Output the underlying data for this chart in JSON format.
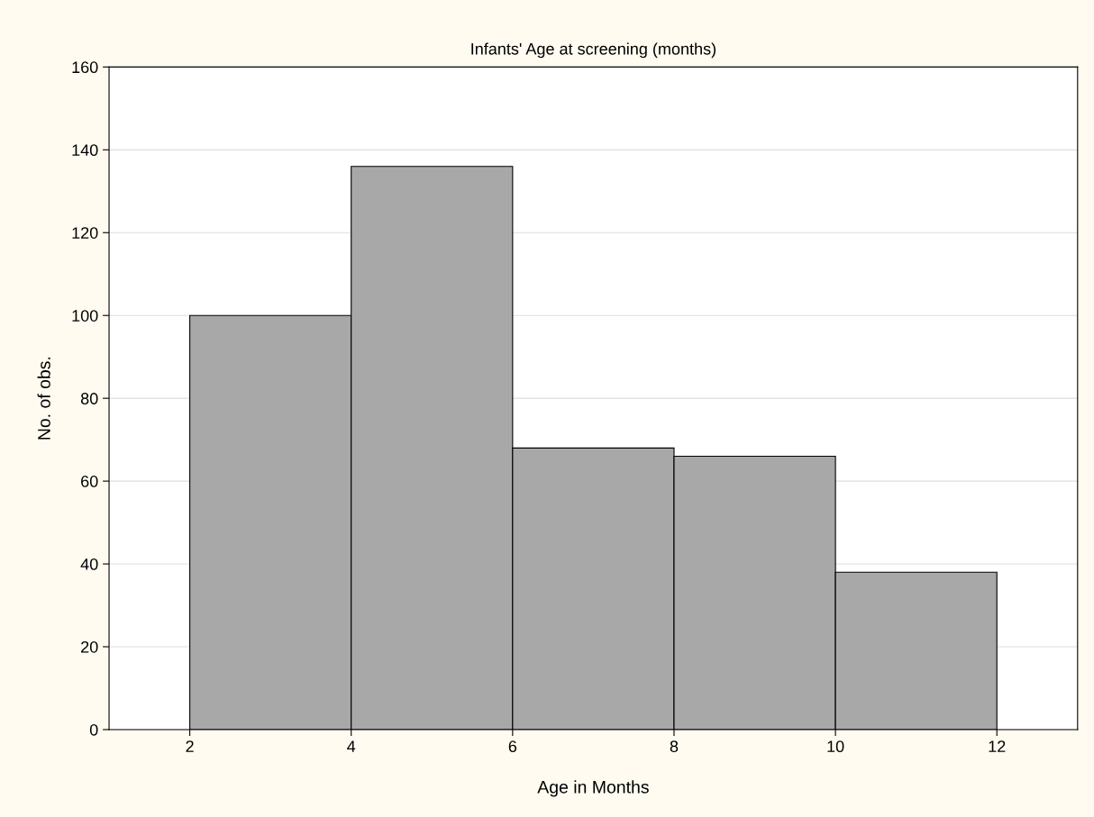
{
  "chart_data": {
    "type": "histogram",
    "title": "Infants' Age at screening (months)",
    "xlabel": "Age in Months",
    "ylabel": "No. of obs.",
    "bins": [
      2,
      4,
      6,
      8,
      10,
      12
    ],
    "values": [
      100,
      136,
      68,
      66,
      38
    ],
    "color": "#a8a8a8",
    "xlim": [
      1,
      13
    ],
    "xticks": [
      2,
      4,
      6,
      8,
      10,
      12
    ],
    "ylim": [
      0,
      160
    ],
    "yticks": [
      0,
      20,
      40,
      60,
      80,
      100,
      120,
      140,
      160
    ],
    "grid": "y"
  }
}
